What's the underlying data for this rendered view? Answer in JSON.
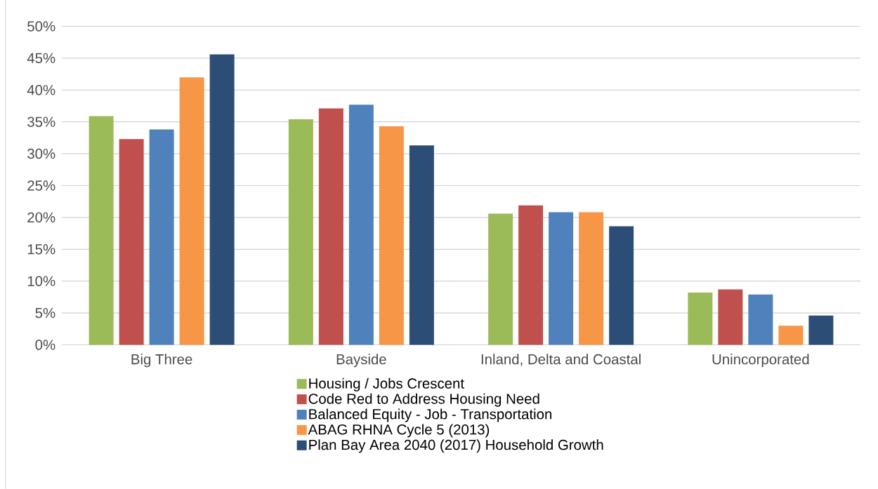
{
  "chart_data": {
    "type": "bar",
    "categories": [
      "Big Three",
      "Bayside",
      "Inland, Delta and Coastal",
      "Unincorporated"
    ],
    "series": [
      {
        "name": "Housing / Jobs Crescent",
        "color": "#9bbb59",
        "values": [
          35.9,
          35.4,
          20.6,
          8.2
        ]
      },
      {
        "name": "Code Red to Address Housing Need",
        "color": "#c0504d",
        "values": [
          32.3,
          37.1,
          21.9,
          8.7
        ]
      },
      {
        "name": "Balanced Equity - Job - Transportation",
        "color": "#4f81bd",
        "values": [
          33.8,
          37.7,
          20.8,
          7.9
        ]
      },
      {
        "name": "ABAG RHNA Cycle 5 (2013)",
        "color": "#f79646",
        "values": [
          42.0,
          34.3,
          20.8,
          3.0
        ]
      },
      {
        "name": "Plan Bay Area 2040 (2017) Household Growth",
        "color": "#2c4d75",
        "values": [
          45.6,
          31.3,
          18.6,
          4.6
        ]
      }
    ],
    "ylim": [
      0,
      50
    ],
    "yticks": [
      {
        "value": 0,
        "label": "0%"
      },
      {
        "value": 5,
        "label": "5%"
      },
      {
        "value": 10,
        "label": "10%"
      },
      {
        "value": 15,
        "label": "15%"
      },
      {
        "value": 20,
        "label": "20%"
      },
      {
        "value": 25,
        "label": "25%"
      },
      {
        "value": 30,
        "label": "30%"
      },
      {
        "value": 35,
        "label": "35%"
      },
      {
        "value": 40,
        "label": "40%"
      },
      {
        "value": 45,
        "label": "45%"
      },
      {
        "value": 50,
        "label": "50%"
      }
    ],
    "grid": "y",
    "legend": "bottom"
  }
}
